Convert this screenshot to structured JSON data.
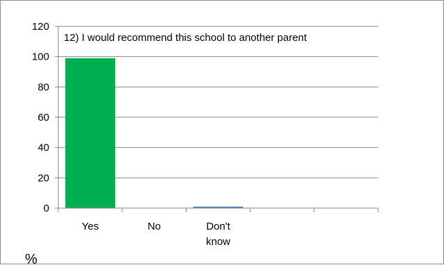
{
  "chart_data": {
    "type": "bar",
    "title": "12) I would recommend this school to another parent",
    "categories": [
      "Yes",
      "No",
      "Don't know",
      "",
      ""
    ],
    "category_lines": [
      [
        "Yes"
      ],
      [
        "No"
      ],
      [
        "Don't",
        "know"
      ],
      [
        ""
      ],
      [
        ""
      ]
    ],
    "values": [
      99,
      0,
      1,
      null,
      null
    ],
    "ylim": [
      0,
      120
    ],
    "yticks": [
      0,
      20,
      40,
      60,
      80,
      100,
      120
    ],
    "ylabel": "%",
    "xlabel": "",
    "grid": true,
    "bar_colors": [
      "#00b050",
      "#00b050",
      "#4f81bd",
      "#00b050",
      "#00b050"
    ],
    "gridline_color": "#868686"
  }
}
